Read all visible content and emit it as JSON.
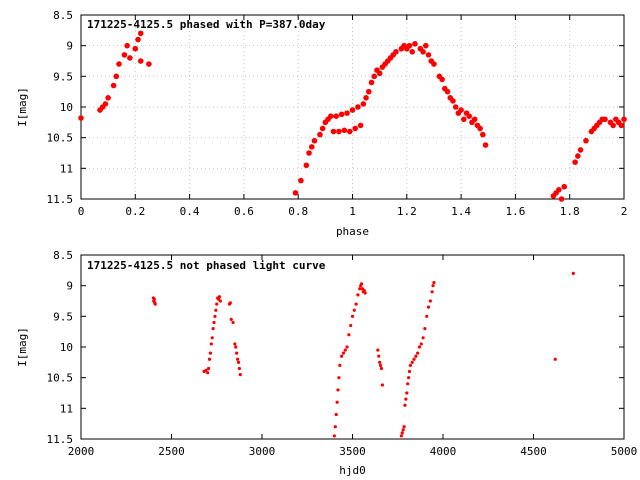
{
  "chart_data": [
    {
      "type": "scatter",
      "title": "171225-4125.5 phased with P=387.0day",
      "xlabel": "phase",
      "ylabel": "I[mag]",
      "xlim": [
        0,
        2
      ],
      "ylim": [
        11.5,
        8.5
      ],
      "y_inverted": true,
      "xticks": [
        0,
        0.2,
        0.4,
        0.6,
        0.8,
        1,
        1.2,
        1.4,
        1.6,
        1.8,
        2
      ],
      "yticks": [
        8.5,
        9,
        9.5,
        10,
        10.5,
        11,
        11.5
      ],
      "marker": "filled-circle",
      "marker_color": "#ff0000",
      "grid": true,
      "series": [
        {
          "x": [
            0.0,
            0.07,
            0.08,
            0.09,
            0.1,
            0.12,
            0.13,
            0.14,
            0.16,
            0.17,
            0.18,
            0.2,
            0.21,
            0.22,
            0.22,
            0.25,
            0.79,
            0.81,
            0.83,
            0.84,
            0.85,
            0.86,
            0.88,
            0.89,
            0.9,
            0.91,
            0.92,
            0.93,
            0.94,
            0.95,
            0.96,
            0.97,
            0.98,
            0.99,
            1.0,
            1.01,
            1.02,
            1.03,
            1.04,
            1.05,
            1.06,
            1.07,
            1.08,
            1.09,
            1.1,
            1.11,
            1.12,
            1.13,
            1.14,
            1.15,
            1.16,
            1.18,
            1.19,
            1.2,
            1.21,
            1.22,
            1.23,
            1.25,
            1.26,
            1.27,
            1.28,
            1.29,
            1.3,
            1.32,
            1.33,
            1.34,
            1.35,
            1.36,
            1.37,
            1.38,
            1.39,
            1.4,
            1.41,
            1.42,
            1.43,
            1.44,
            1.45,
            1.46,
            1.47,
            1.48,
            1.49,
            1.74,
            1.75,
            1.76,
            1.77,
            1.78,
            1.82,
            1.83,
            1.84,
            1.86,
            1.88,
            1.89,
            1.9,
            1.91,
            1.92,
            1.93,
            1.95,
            1.96,
            1.97,
            1.98,
            1.99,
            2.0
          ],
          "y": [
            10.18,
            10.05,
            10.0,
            9.95,
            9.85,
            9.65,
            9.5,
            9.3,
            9.15,
            9.0,
            9.2,
            9.05,
            8.9,
            8.8,
            9.25,
            9.3,
            11.4,
            11.2,
            10.95,
            10.75,
            10.65,
            10.55,
            10.45,
            10.35,
            10.25,
            10.2,
            10.15,
            10.4,
            10.15,
            10.4,
            10.12,
            10.38,
            10.1,
            10.4,
            10.05,
            10.35,
            10.0,
            10.3,
            9.95,
            9.85,
            9.75,
            9.6,
            9.5,
            9.4,
            9.45,
            9.35,
            9.3,
            9.25,
            9.2,
            9.15,
            9.1,
            9.05,
            9.0,
            9.05,
            9.0,
            9.1,
            8.97,
            9.05,
            9.1,
            9.0,
            9.15,
            9.25,
            9.3,
            9.5,
            9.55,
            9.7,
            9.75,
            9.85,
            9.9,
            10.0,
            10.1,
            10.05,
            10.2,
            10.1,
            10.15,
            10.25,
            10.2,
            10.3,
            10.35,
            10.45,
            10.62,
            11.45,
            11.4,
            11.35,
            11.5,
            11.3,
            10.9,
            10.8,
            10.7,
            10.55,
            10.4,
            10.35,
            10.3,
            10.25,
            10.2,
            10.2,
            10.25,
            10.3,
            10.2,
            10.25,
            10.3,
            10.2
          ]
        }
      ]
    },
    {
      "type": "scatter",
      "title": "171225-4125.5 not phased light curve",
      "xlabel": "hjd0",
      "ylabel": "I[mag]",
      "xlim": [
        2000,
        5000
      ],
      "ylim": [
        11.5,
        8.5
      ],
      "y_inverted": true,
      "xticks": [
        2000,
        2500,
        3000,
        3500,
        4000,
        4500,
        5000
      ],
      "yticks": [
        8.5,
        9,
        9.5,
        10,
        10.5,
        11,
        11.5
      ],
      "marker": "filled-circle",
      "marker_color": "#ff0000",
      "grid": false,
      "series": [
        {
          "x": [
            2400,
            2402,
            2405,
            2408,
            2410,
            2680,
            2690,
            2700,
            2705,
            2710,
            2715,
            2720,
            2725,
            2730,
            2735,
            2740,
            2745,
            2750,
            2755,
            2760,
            2765,
            2770,
            2820,
            2825,
            2830,
            2840,
            2850,
            2855,
            2860,
            2865,
            2870,
            2875,
            2880,
            3400,
            3405,
            3410,
            3415,
            3420,
            3425,
            3430,
            3440,
            3450,
            3460,
            3470,
            3480,
            3490,
            3500,
            3510,
            3520,
            3530,
            3540,
            3545,
            3550,
            3555,
            3560,
            3565,
            3570,
            3640,
            3645,
            3650,
            3655,
            3660,
            3665,
            3770,
            3775,
            3780,
            3785,
            3790,
            3795,
            3800,
            3805,
            3810,
            3815,
            3820,
            3830,
            3840,
            3850,
            3860,
            3870,
            3880,
            3890,
            3900,
            3910,
            3920,
            3930,
            3940,
            3945,
            3950,
            4620,
            4720
          ],
          "y": [
            9.2,
            9.25,
            9.22,
            9.28,
            9.3,
            10.4,
            10.38,
            10.42,
            10.35,
            10.2,
            10.1,
            9.95,
            9.85,
            9.7,
            9.6,
            9.5,
            9.4,
            9.3,
            9.2,
            9.22,
            9.18,
            9.25,
            9.3,
            9.28,
            9.55,
            9.6,
            9.95,
            10.0,
            10.1,
            10.2,
            10.25,
            10.35,
            10.45,
            11.45,
            11.3,
            11.1,
            10.9,
            10.7,
            10.5,
            10.3,
            10.15,
            10.1,
            10.05,
            10.0,
            9.8,
            9.65,
            9.5,
            9.4,
            9.3,
            9.15,
            9.05,
            9.0,
            8.97,
            9.05,
            9.1,
            9.08,
            9.12,
            10.05,
            10.15,
            10.25,
            10.3,
            10.35,
            10.62,
            11.45,
            11.4,
            11.35,
            11.3,
            10.95,
            10.85,
            10.75,
            10.6,
            10.5,
            10.4,
            10.3,
            10.25,
            10.2,
            10.15,
            10.1,
            10.0,
            9.95,
            9.85,
            9.7,
            9.5,
            9.35,
            9.25,
            9.1,
            9.0,
            8.95,
            10.2,
            8.8
          ]
        }
      ]
    }
  ]
}
